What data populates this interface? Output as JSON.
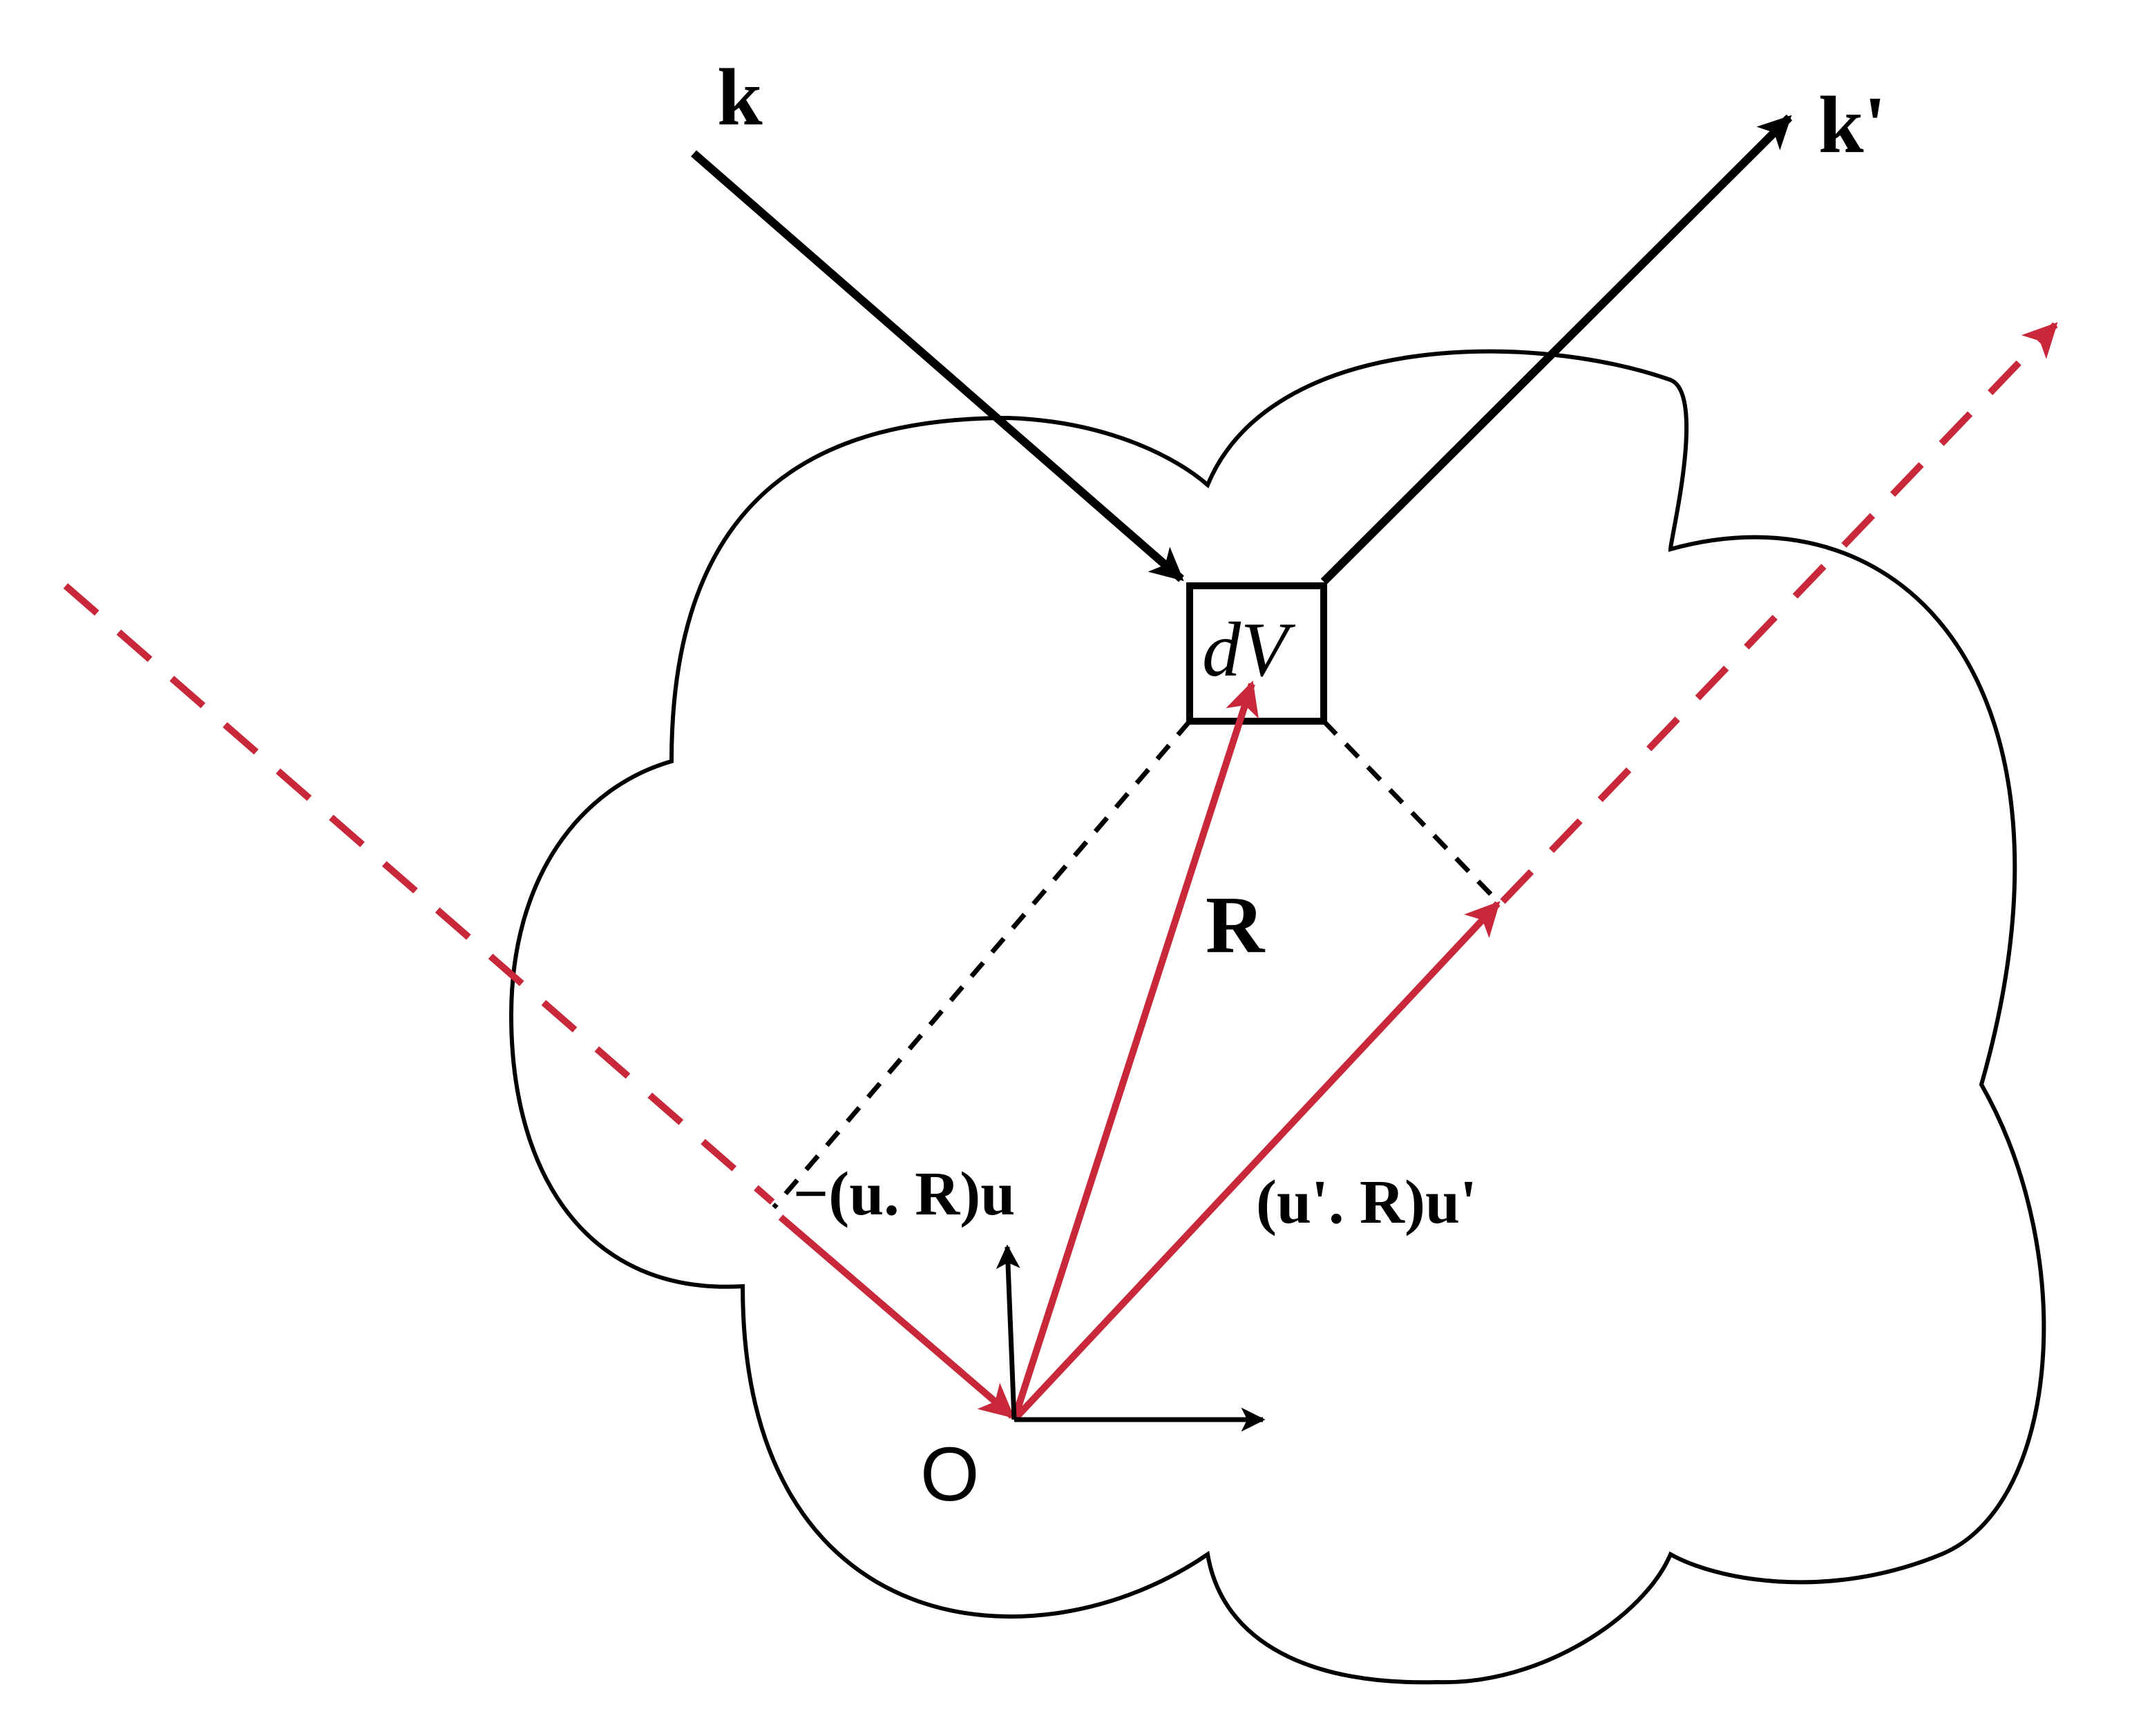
{
  "labels": {
    "incident_wavevector": "k",
    "scattered_wavevector": "k'",
    "volume_element": "dV",
    "position_vector": "R",
    "incident_projection": "−(u. R)u",
    "scattered_projection": "(u'. R)u'",
    "origin": "O"
  },
  "colors": {
    "outline": "#000000",
    "accent_red": "#c8283a",
    "background": "#ffffff"
  }
}
